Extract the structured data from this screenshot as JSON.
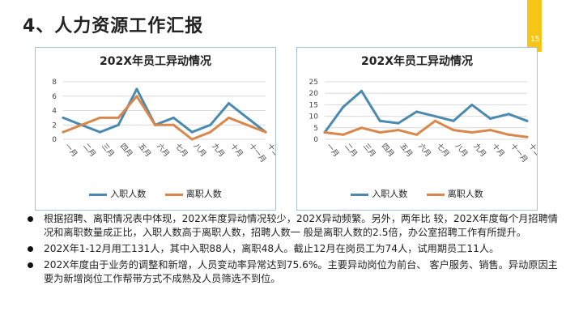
{
  "slide": {
    "title": "4、人力资源工作汇报",
    "page_number": "15",
    "accent_color": "#f5c518"
  },
  "chart_data": [
    {
      "type": "line",
      "title": "202X年员工异动情况",
      "categories": [
        "一月",
        "二月",
        "三月",
        "四月",
        "五月",
        "六月",
        "七月",
        "八月",
        "九月",
        "十月",
        "十一月",
        "十二月"
      ],
      "ylim": [
        0,
        8
      ],
      "yticks": [
        0,
        2,
        4,
        6,
        8
      ],
      "series": [
        {
          "name": "入职人数",
          "color": "#4a8ab0",
          "values": [
            3,
            2,
            1,
            2,
            7,
            2,
            3,
            1,
            2,
            5,
            3,
            1
          ]
        },
        {
          "name": "离职人数",
          "color": "#d9874a",
          "values": [
            1,
            2,
            3,
            3,
            6,
            2,
            2,
            0,
            1,
            3,
            2,
            1
          ]
        }
      ]
    },
    {
      "type": "line",
      "title": "202X年员工异动情况",
      "categories": [
        "一月",
        "二月",
        "三月",
        "四月",
        "五月",
        "六月",
        "七月",
        "八月",
        "九月",
        "十月",
        "十一月",
        "十二月"
      ],
      "ylim": [
        0,
        25
      ],
      "yticks": [
        0,
        5,
        10,
        15,
        20,
        25
      ],
      "series": [
        {
          "name": "入职人数",
          "color": "#4a8ab0",
          "values": [
            3,
            14,
            21,
            8,
            7,
            12,
            10,
            8,
            15,
            9,
            11,
            8
          ]
        },
        {
          "name": "离职人数",
          "color": "#d9874a",
          "values": [
            3,
            2,
            5,
            3,
            4,
            2,
            8,
            4,
            3,
            4,
            2,
            1
          ]
        }
      ]
    }
  ],
  "bullets": [
    "根据招聘、离职情况表中体现，202X年度异动情况较少，202X异动频繁。另外，两年比 较，202X年度每个月招聘情况和离职数量成正比，入职人数高于离职人数，招聘人数一 般是离职人数的2.5倍，办公室招聘工作有所提升。",
    "202X年1-12月用工131人，其中入职88人，离职48人。截止12月在岗员工为74人，试用期员工11人。",
    "202X年度由于业务的调整和新增，人员变动率异常达到75.6%。主要异动岗位为前台、 客户服务、销售。异动原因主要为新增岗位工作帮带方式不成熟及人员筛选不到位。"
  ]
}
